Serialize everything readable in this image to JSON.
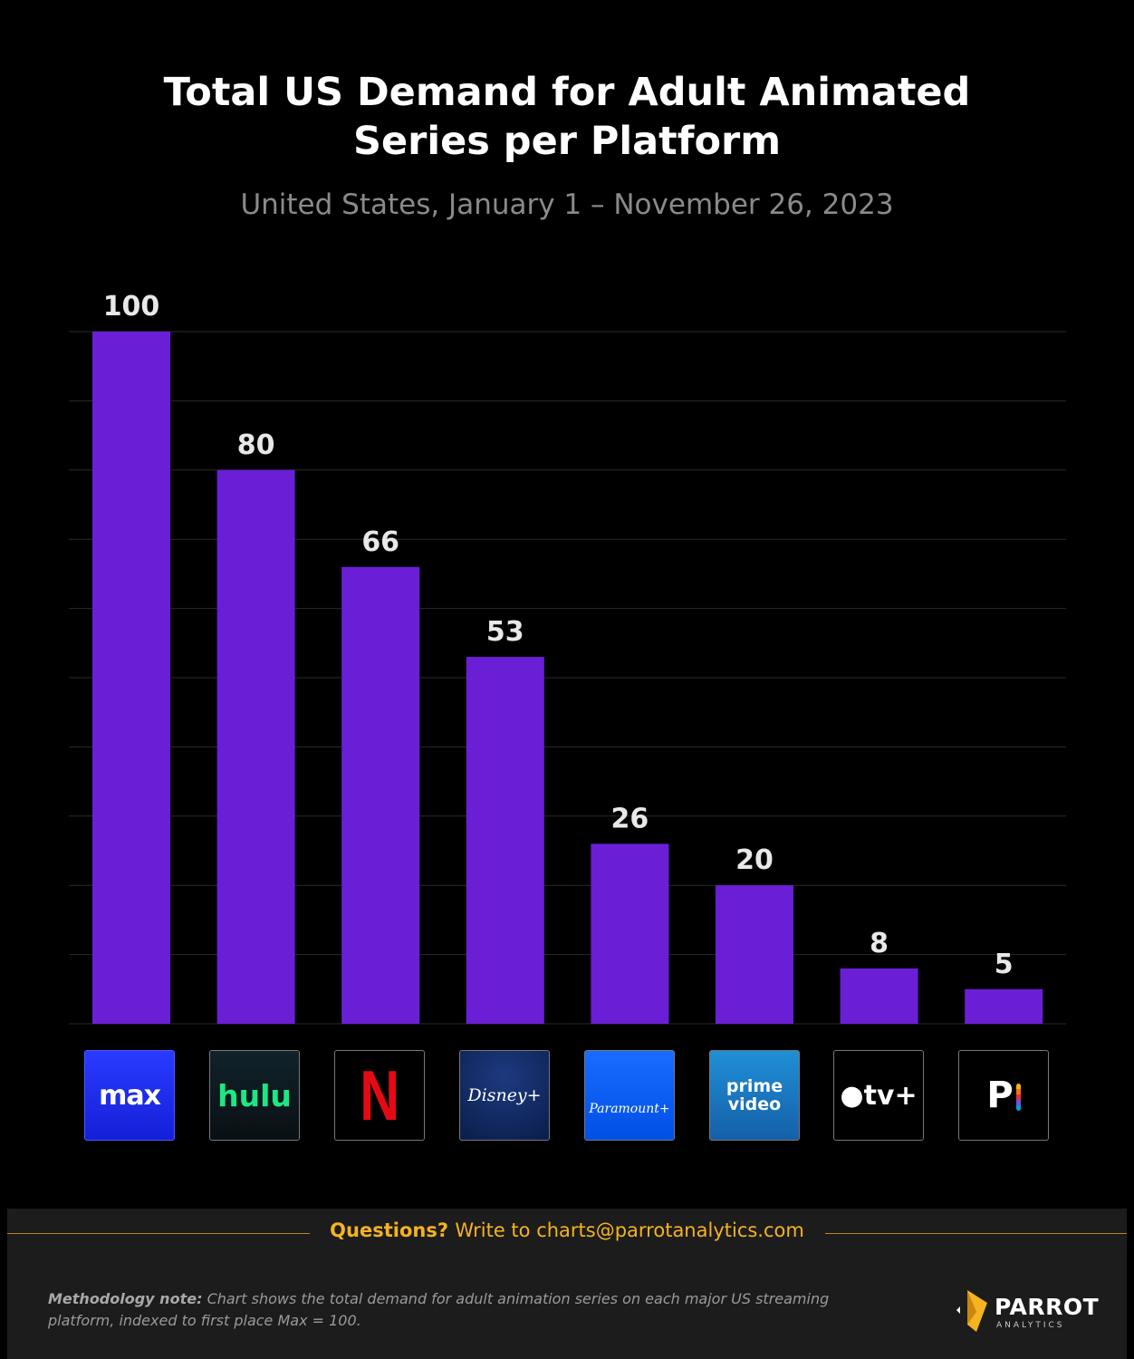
{
  "title_line1": "Total US Demand for Adult Animated",
  "title_line2": "Series per Platform",
  "subtitle": "United States, January 1 – November 26, 2023",
  "colors": {
    "bar": "#6a1fd6",
    "background": "#000000",
    "grid": "#2a2a2a",
    "accent": "#f5b321"
  },
  "chart_data": {
    "type": "bar",
    "categories": [
      "max",
      "hulu",
      "Netflix",
      "Disney+",
      "Paramount+",
      "prime video",
      "Apple tv+",
      "Peacock"
    ],
    "values": [
      100,
      80,
      66,
      53,
      26,
      20,
      8,
      5
    ],
    "ylim": [
      0,
      100
    ],
    "grid": true,
    "legend": "none"
  },
  "logos": {
    "max": "max",
    "hulu": "hulu",
    "netflix": "N",
    "disney": "Disney+",
    "paramount": "Paramount+",
    "prime_line1": "prime",
    "prime_line2": "video",
    "appletv": "tv+",
    "peacock": "P"
  },
  "footer": {
    "questions_label": "Questions?",
    "questions_text": "Write to charts@parrotanalytics.com",
    "method_label": "Methodology note:",
    "method_text": "Chart shows the total demand for adult animation series on each major US streaming platform, indexed to first place Max = 100.",
    "brand_name": "PARROT",
    "brand_sub": "ANALYTICS"
  }
}
